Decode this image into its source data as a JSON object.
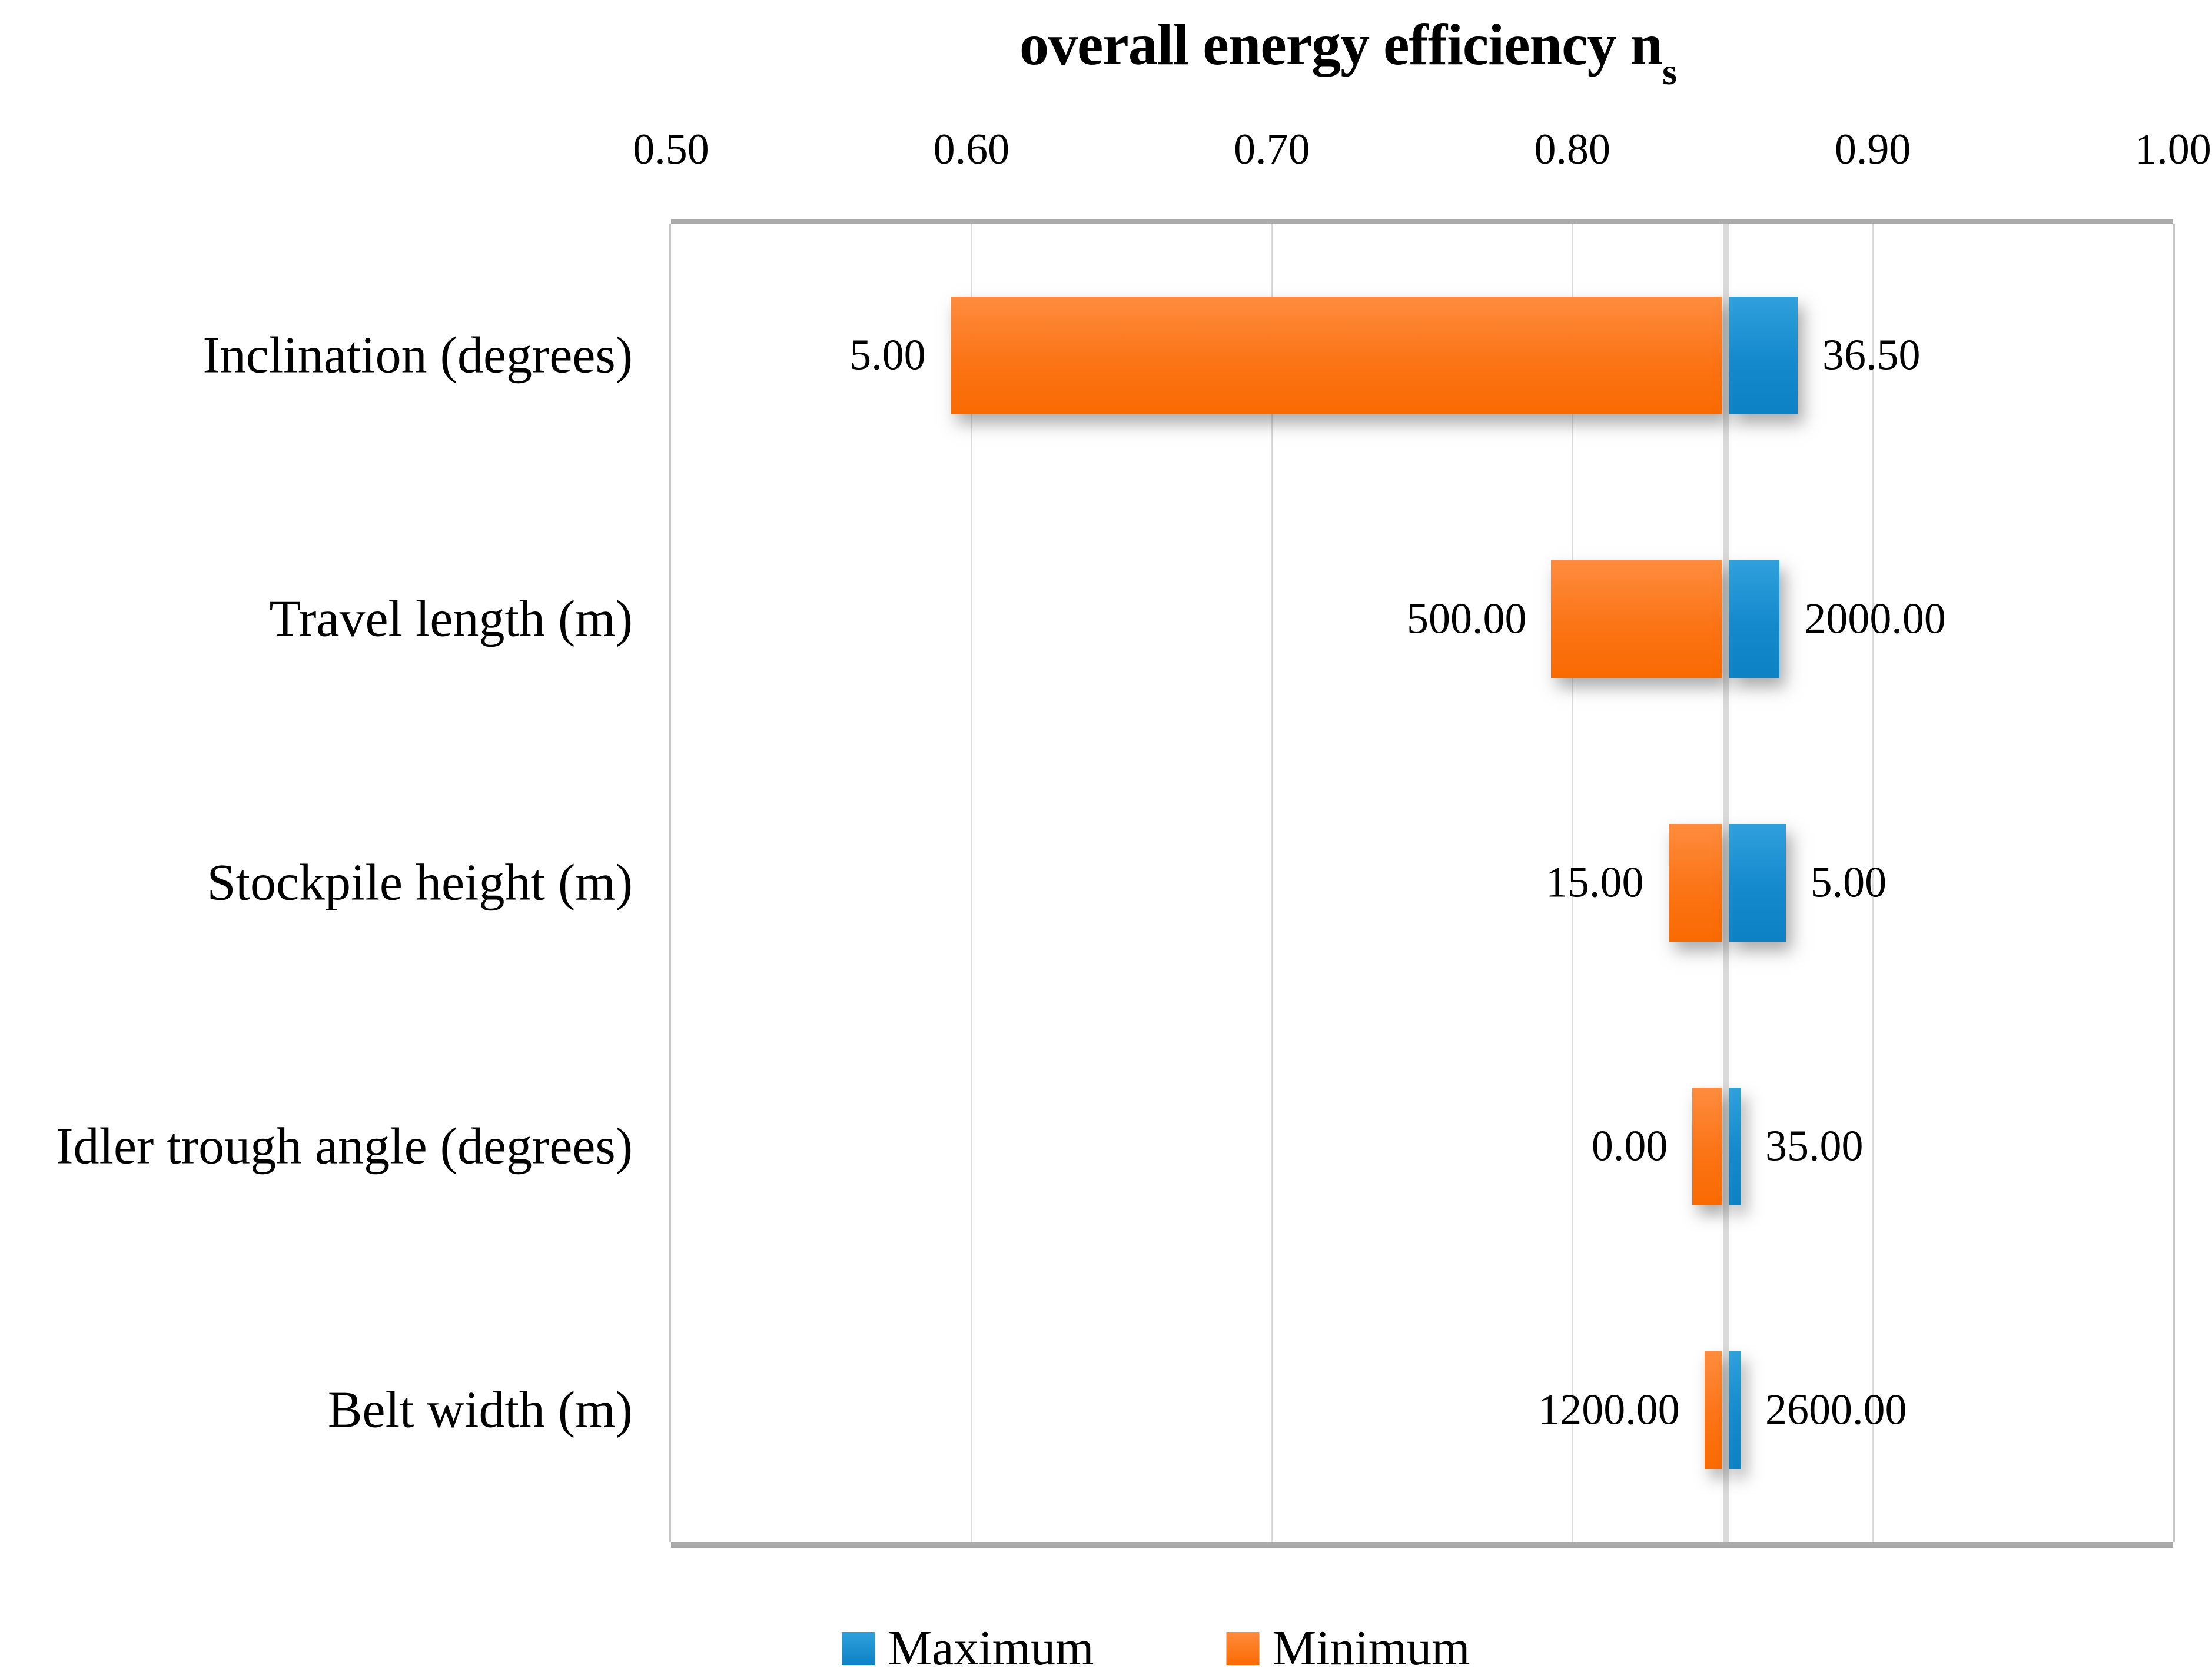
{
  "page": {
    "background": "#FFFFFF"
  },
  "chart_data": {
    "type": "bar",
    "subtype": "tornado-sensitivity",
    "orientation": "horizontal",
    "title_main": "overall energy efficiency n",
    "title_sub": "s",
    "x_axis": {
      "position": "top",
      "min": 0.5,
      "max": 1.0,
      "ticks": [
        "0.50",
        "0.60",
        "0.70",
        "0.80",
        "0.90",
        "1.00"
      ],
      "gridlines": true
    },
    "baseline_ns": 0.851,
    "categories": [
      "Inclination (degrees)",
      "Travel length (m)",
      "Stockpile height (m)",
      "Idler trough angle (degrees)",
      "Belt width (m)"
    ],
    "rows": [
      {
        "category": "Inclination (degrees)",
        "min_label": "5.00",
        "max_label": "36.50",
        "min_end_ns": 0.593,
        "max_end_ns": 0.875
      },
      {
        "category": "Travel length (m)",
        "min_label": "500.00",
        "max_label": "2000.00",
        "min_end_ns": 0.793,
        "max_end_ns": 0.869
      },
      {
        "category": "Stockpile height (m)",
        "min_label": "15.00",
        "max_label": "5.00",
        "min_end_ns": 0.832,
        "max_end_ns": 0.871
      },
      {
        "category": "Idler trough angle (degrees)",
        "min_label": "0.00",
        "max_label": "35.00",
        "min_end_ns": 0.84,
        "max_end_ns": 0.856
      },
      {
        "category": "Belt width (m)",
        "min_label": "1200.00",
        "max_label": "2600.00",
        "min_end_ns": 0.844,
        "max_end_ns": 0.856
      }
    ],
    "series": [
      {
        "name": "Maximum",
        "color": "#1B90D0",
        "gradient_top": "#2FA0DC",
        "gradient_bottom": "#0C82C4"
      },
      {
        "name": "Minimum",
        "color": "#FB7A1E",
        "gradient_top": "#FF8C3E",
        "gradient_bottom": "#FA6A02"
      }
    ],
    "legend": {
      "position": "bottom",
      "items": [
        {
          "label": "Maximum",
          "swatch": "maximum"
        },
        {
          "label": "Minimum",
          "swatch": "minimum"
        }
      ]
    },
    "colors": {
      "gridline": "#D9D9D9",
      "baseline_line": "#DADADA",
      "plot_border": "#ABABAB",
      "text": "#000000"
    }
  }
}
